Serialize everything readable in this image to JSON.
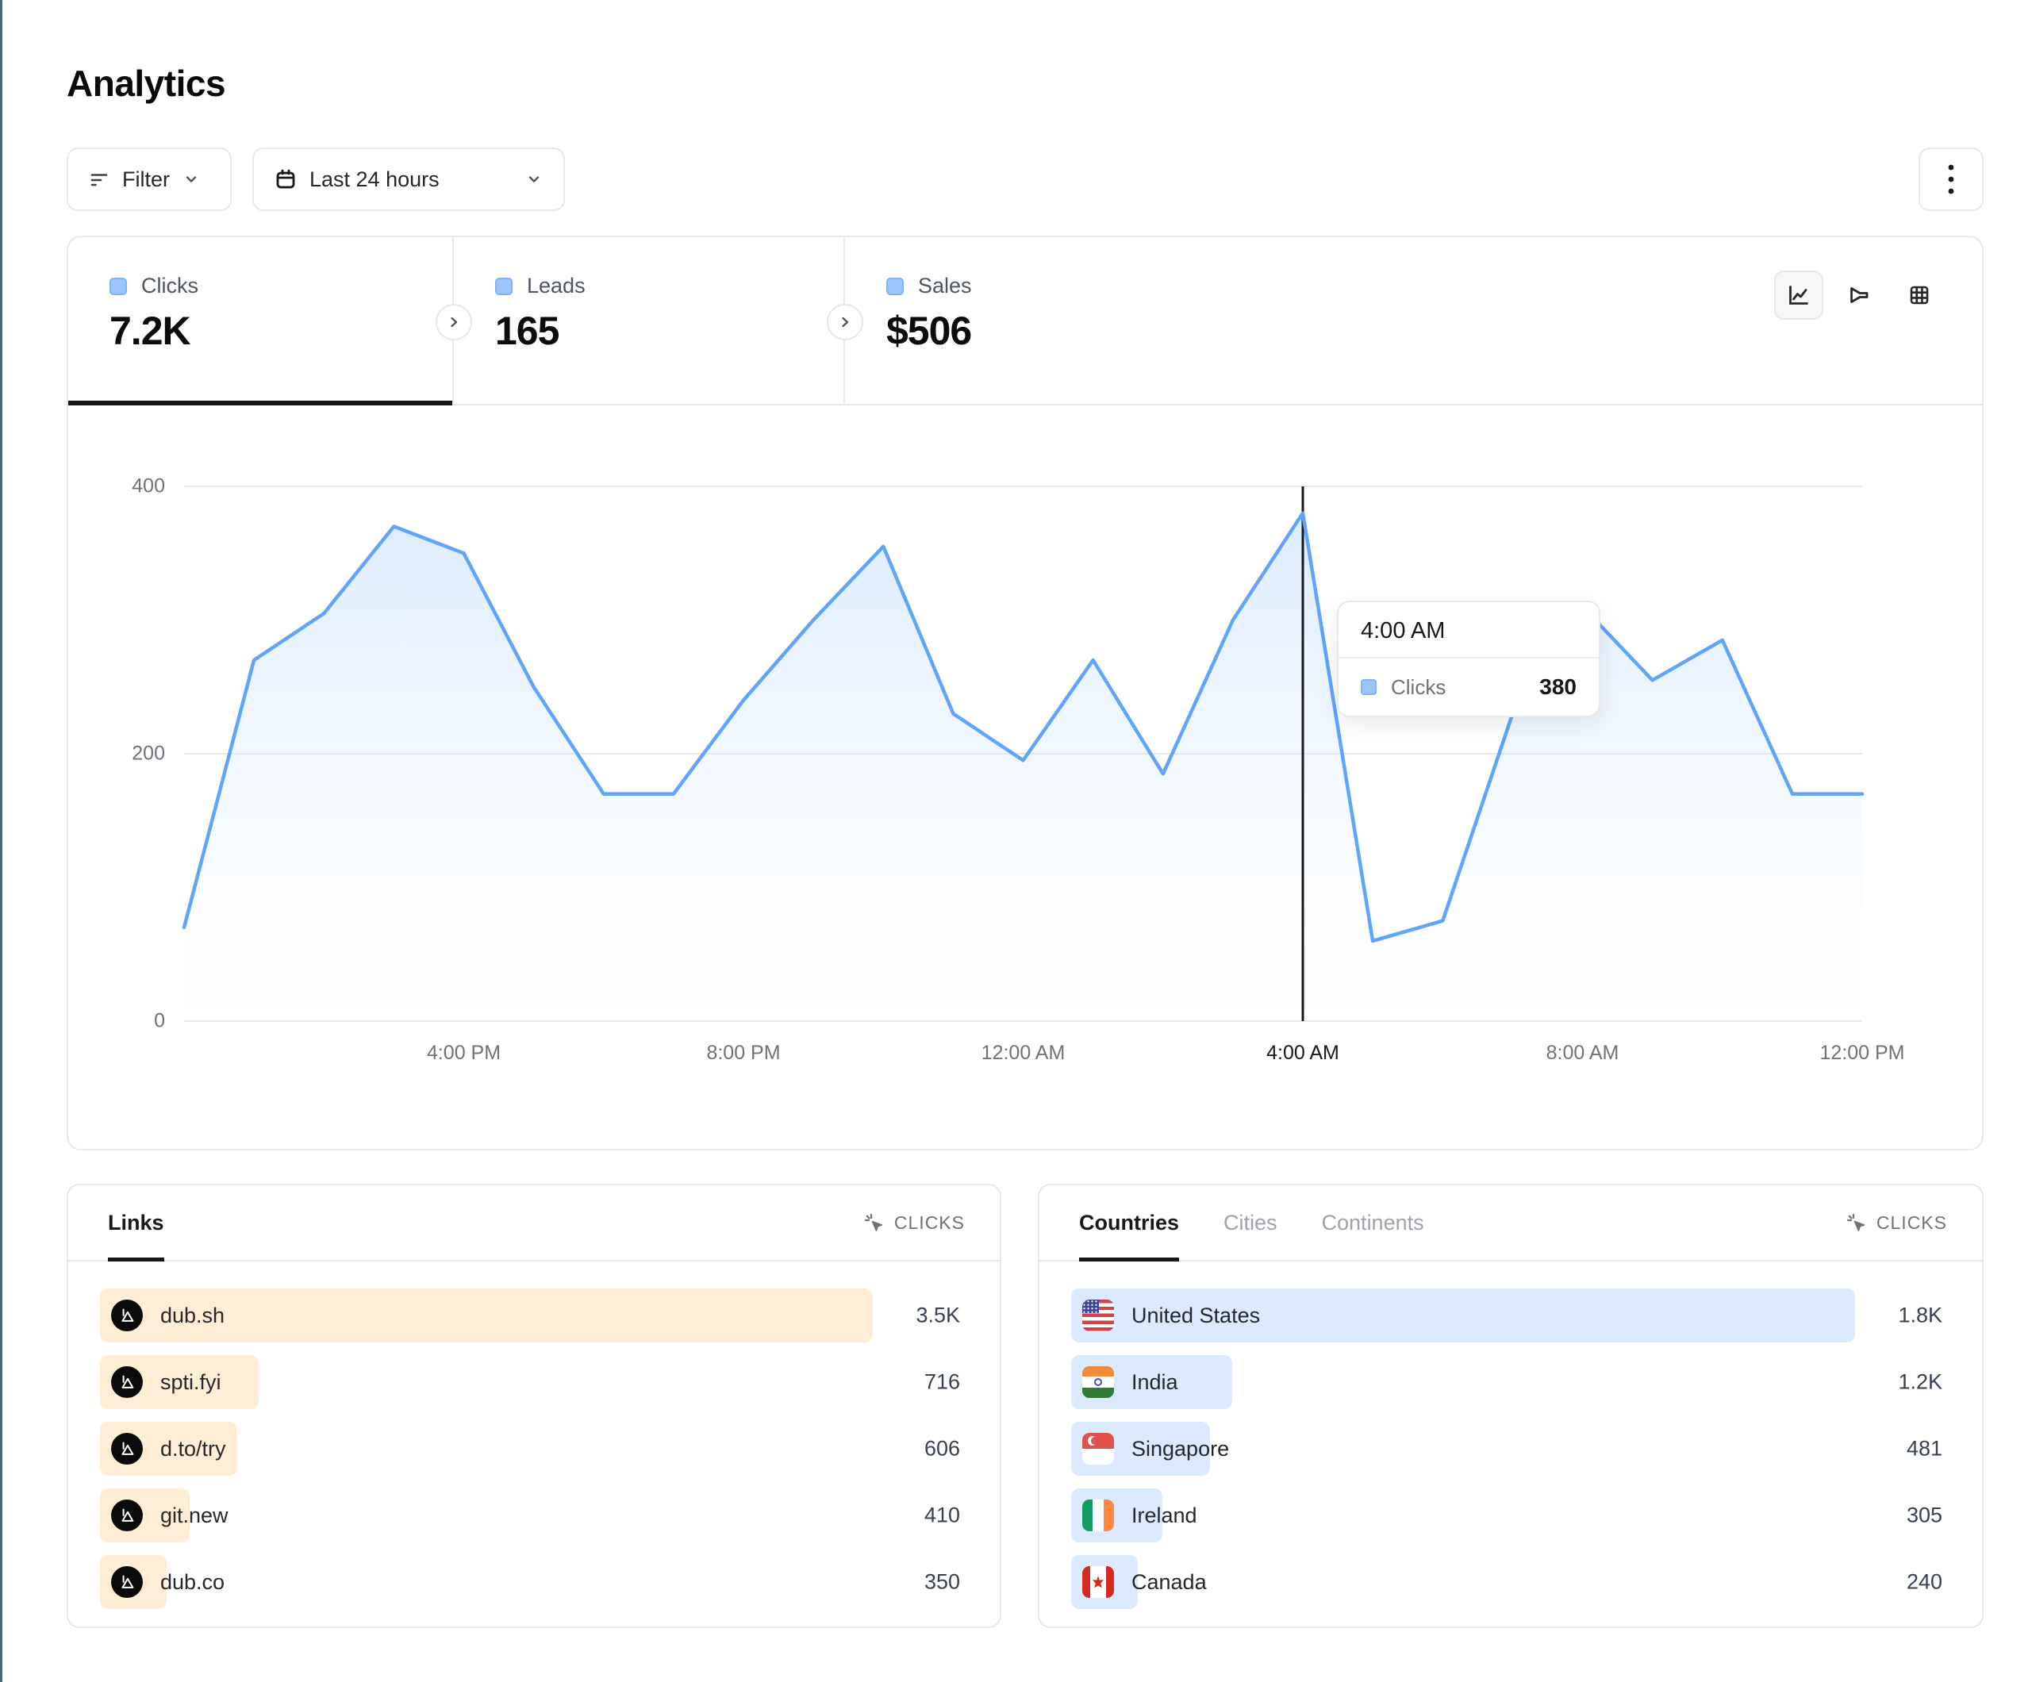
{
  "page": {
    "title": "Analytics"
  },
  "toolbar": {
    "filter": {
      "label": "Filter"
    },
    "date_range": {
      "label": "Last 24 hours"
    }
  },
  "stat_tabs": [
    {
      "label": "Clicks",
      "value": "7.2K",
      "active": true
    },
    {
      "label": "Leads",
      "value": "165",
      "active": false
    },
    {
      "label": "Sales",
      "value": "$506",
      "active": false
    }
  ],
  "chart_views": [
    {
      "name": "line-chart",
      "active": true
    },
    {
      "name": "funnel",
      "active": false
    },
    {
      "name": "table",
      "active": false
    }
  ],
  "chart_data": {
    "type": "area",
    "series_name": "Clicks",
    "x": [
      "12:00 PM",
      "1:00 PM",
      "2:00 PM",
      "3:00 PM",
      "4:00 PM",
      "5:00 PM",
      "6:00 PM",
      "7:00 PM",
      "8:00 PM",
      "9:00 PM",
      "10:00 PM",
      "11:00 PM",
      "12:00 AM",
      "1:00 AM",
      "2:00 AM",
      "3:00 AM",
      "4:00 AM",
      "5:00 AM",
      "6:00 AM",
      "7:00 AM",
      "8:00 AM",
      "9:00 AM",
      "10:00 AM",
      "11:00 AM",
      "12:00 PM"
    ],
    "values": [
      70,
      270,
      305,
      370,
      350,
      250,
      170,
      170,
      240,
      300,
      355,
      230,
      195,
      270,
      185,
      300,
      380,
      60,
      75,
      230,
      310,
      255,
      285,
      170,
      170
    ],
    "ylim": [
      0,
      400
    ],
    "yticks": [
      0,
      200,
      400
    ],
    "xticks": [
      "4:00 PM",
      "8:00 PM",
      "12:00 AM",
      "4:00 AM",
      "8:00 AM",
      "12:00 PM"
    ],
    "xtick_indices": [
      4,
      8,
      12,
      16,
      20,
      24
    ],
    "highlight": {
      "index": 16,
      "label": "4:00 AM"
    },
    "grid": true,
    "tooltip": {
      "title": "4:00 AM",
      "series": "Clicks",
      "value": "380"
    }
  },
  "links_panel": {
    "tab_label": "Links",
    "metric_label": "CLICKS",
    "bar_color": "#ffedd5",
    "rows": [
      {
        "label": "dub.sh",
        "value": "3.5K",
        "bar_pct": 100
      },
      {
        "label": "spti.fyi",
        "value": "716",
        "bar_pct": 20.5
      },
      {
        "label": "d.to/try",
        "value": "606",
        "bar_pct": 17.8
      },
      {
        "label": "git.new",
        "value": "410",
        "bar_pct": 11.6
      },
      {
        "label": "dub.co",
        "value": "350",
        "bar_pct": 8.6
      }
    ]
  },
  "countries_panel": {
    "tabs": [
      {
        "label": "Countries",
        "active": true
      },
      {
        "label": "Cities",
        "active": false
      },
      {
        "label": "Continents",
        "active": false
      }
    ],
    "metric_label": "CLICKS",
    "bar_color": "#dbeafe",
    "rows": [
      {
        "label": "United States",
        "value": "1.8K",
        "bar_pct": 100,
        "flag": "us"
      },
      {
        "label": "India",
        "value": "1.2K",
        "bar_pct": 20.5,
        "flag": "in"
      },
      {
        "label": "Singapore",
        "value": "481",
        "bar_pct": 17.7,
        "flag": "sg"
      },
      {
        "label": "Ireland",
        "value": "305",
        "bar_pct": 11.6,
        "flag": "ie"
      },
      {
        "label": "Canada",
        "value": "240",
        "bar_pct": 8.5,
        "flag": "ca"
      }
    ]
  },
  "colors": {
    "accent_line": "#60a5fa",
    "legend_chip": "#9dc4fb",
    "links_bar": "#ffedd5",
    "countries_bar": "#dbeafe",
    "crosshair": "#18181b",
    "grid_line": "#e8e8ea"
  }
}
